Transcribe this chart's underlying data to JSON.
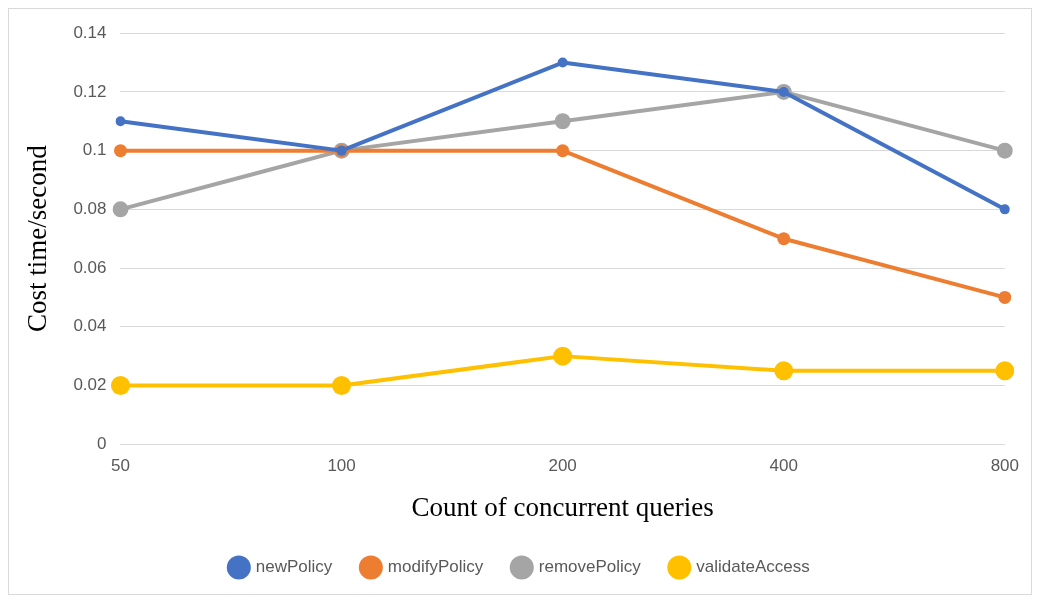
{
  "chart_data": {
    "type": "line",
    "xlabel": "Count of concurrent queries",
    "ylabel": "Cost time/second",
    "categories": [
      "50",
      "100",
      "200",
      "400",
      "800"
    ],
    "series": [
      {
        "name": "newPolicy",
        "color": "#4472c4",
        "values": [
          0.11,
          0.1,
          0.13,
          0.12,
          0.08
        ]
      },
      {
        "name": "modifyPolicy",
        "color": "#ed7d31",
        "values": [
          0.1,
          0.1,
          0.1,
          0.07,
          0.05
        ]
      },
      {
        "name": "removePolicy",
        "color": "#a5a5a5",
        "values": [
          0.08,
          0.1,
          0.11,
          0.12,
          0.1
        ]
      },
      {
        "name": "validateAccess",
        "color": "#ffc000",
        "values": [
          0.02,
          0.02,
          0.03,
          0.025,
          0.025
        ]
      }
    ],
    "ylim": [
      0,
      0.14
    ],
    "yticks": [
      0,
      0.02,
      0.04,
      0.06,
      0.08,
      0.1,
      0.12,
      0.14
    ],
    "grid": "y",
    "legend": "bottom",
    "marker": "circle",
    "line_style": "solid"
  }
}
